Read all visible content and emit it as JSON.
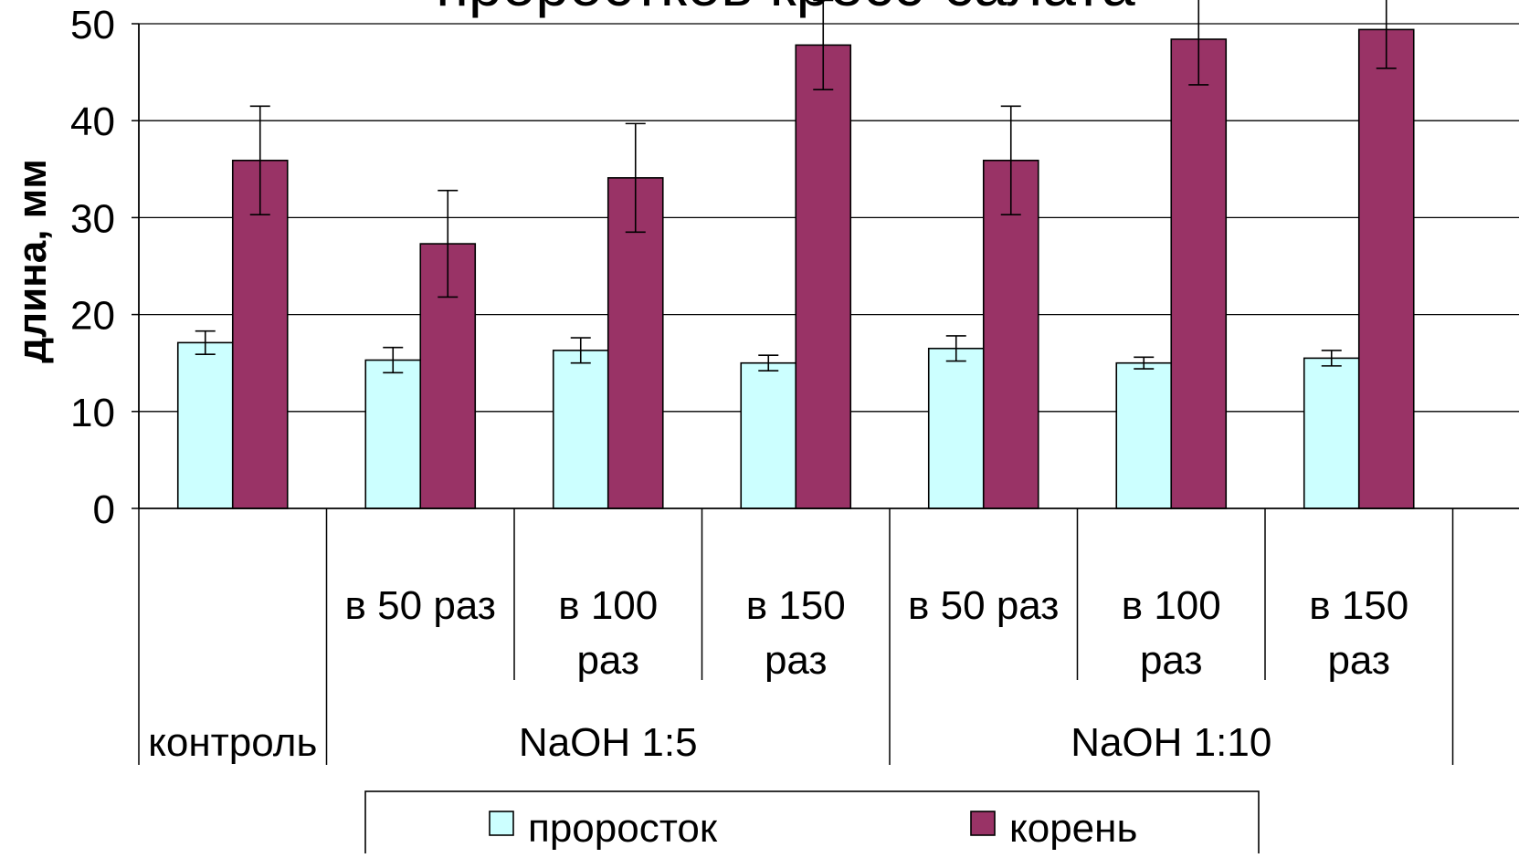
{
  "chart_data": {
    "type": "bar",
    "title": "проростков кресс-салата",
    "ylabel": "длина, мм",
    "xlabel": "",
    "ylim": [
      0,
      50
    ],
    "yticks": [
      0,
      10,
      20,
      30,
      40,
      50
    ],
    "grid": true,
    "legend_position": "bottom",
    "categories": [
      {
        "label": "",
        "group": "контроль"
      },
      {
        "label": "в 50 раз",
        "group": "NaOH 1:5"
      },
      {
        "label": "в 100 раз",
        "group": "NaOH 1:5"
      },
      {
        "label": "в 150 раз",
        "group": "NaOH 1:5"
      },
      {
        "label": "в 50 раз",
        "group": "NaOH 1:10"
      },
      {
        "label": "в 100 раз",
        "group": "NaOH 1:10"
      },
      {
        "label": "в 150 раз",
        "group": "NaOH 1:10"
      }
    ],
    "groups": [
      "контроль",
      "NaOH 1:5",
      "NaOH 1:10"
    ],
    "series": [
      {
        "name": "проросток",
        "color": "#ccffff",
        "values": [
          17.1,
          15.3,
          16.3,
          15.0,
          16.5,
          15.0,
          15.5
        ],
        "errors": [
          1.2,
          1.3,
          1.3,
          0.8,
          1.3,
          0.6,
          0.8
        ]
      },
      {
        "name": "корень",
        "color": "#993366",
        "values": [
          35.9,
          27.3,
          34.1,
          47.8,
          35.9,
          48.4,
          49.4
        ],
        "errors": [
          5.6,
          5.5,
          5.6,
          4.6,
          5.6,
          4.7,
          4.0
        ]
      }
    ]
  }
}
